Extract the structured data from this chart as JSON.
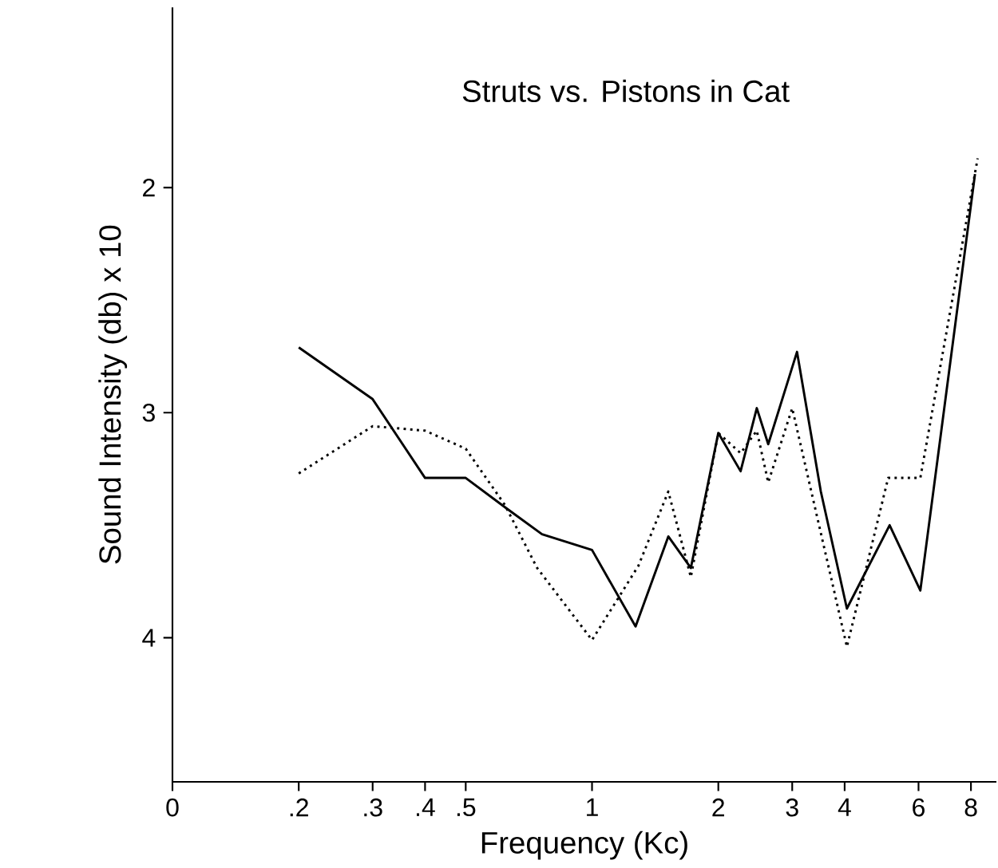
{
  "chart_data": {
    "type": "line",
    "title": "Struts vs. Pistons in Cat",
    "xlabel": "Frequency (Kc)",
    "ylabel": "Sound Intensity (db) x 10",
    "log": "x",
    "grid": false,
    "marker": "none",
    "xlim": [
      0.1,
      9.2
    ],
    "ylim": [
      4.64,
      1.2
    ],
    "xticks": [
      {
        "value": 0.1,
        "label": "0"
      },
      {
        "value": 0.2,
        "label": ".2"
      },
      {
        "value": 0.3,
        "label": ".3"
      },
      {
        "value": 0.4,
        "label": ".4"
      },
      {
        "value": 0.5,
        "label": ".5"
      },
      1,
      2,
      3,
      4,
      6,
      8
    ],
    "yticks": [
      2,
      3,
      4
    ],
    "series": [
      {
        "color": "#000000",
        "line_style": "solid",
        "x": [
          0.2,
          0.3,
          0.4,
          0.5,
          0.62,
          0.76,
          1,
          1.27,
          1.52,
          1.72,
          2.0,
          2.26,
          2.47,
          2.63,
          3.08,
          3.51,
          4.05,
          5.12,
          6.06,
          8.18
        ],
        "values": [
          2.71,
          2.94,
          3.29,
          3.29,
          3.42,
          3.54,
          3.61,
          3.95,
          3.55,
          3.69,
          3.09,
          3.26,
          2.98,
          3.14,
          2.73,
          3.35,
          3.87,
          3.5,
          3.79,
          1.94
        ]
      },
      {
        "color": "#000000",
        "line_style": "dotted",
        "x": [
          0.2,
          0.3,
          0.4,
          0.5,
          0.62,
          0.74,
          1,
          1.29,
          1.52,
          1.72,
          2.0,
          2.26,
          2.47,
          2.63,
          3.0,
          4.05,
          5.08,
          6.06,
          8.3
        ],
        "values": [
          3.27,
          3.06,
          3.08,
          3.16,
          3.41,
          3.69,
          4.01,
          3.68,
          3.35,
          3.73,
          3.09,
          3.18,
          3.08,
          3.31,
          2.98,
          4.04,
          3.29,
          3.29,
          1.87
        ]
      }
    ]
  }
}
